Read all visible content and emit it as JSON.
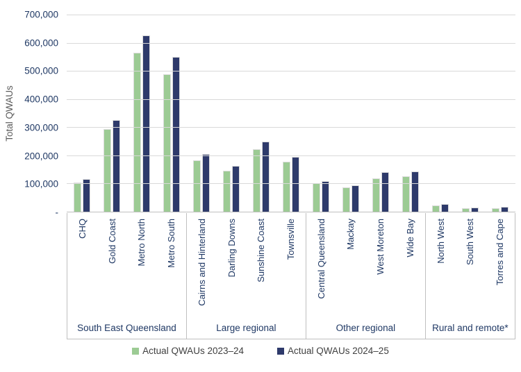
{
  "chart_data": {
    "type": "bar",
    "title": "",
    "xlabel": "",
    "ylabel": "Total QWAUs",
    "ylim": [
      0,
      700000
    ],
    "ytick_step": 100000,
    "ytick_labels": [
      "700,000",
      "600,000",
      "500,000",
      "400,000",
      "300,000",
      "200,000",
      "100,000",
      "-"
    ],
    "grid": true,
    "legend_position": "bottom",
    "groups": [
      {
        "label": "South East Queensland",
        "categories": [
          "CHQ",
          "Gold Coast",
          "Metro North",
          "Metro South"
        ]
      },
      {
        "label": "Large regional",
        "categories": [
          "Cairns and Hinterland",
          "Darling Downs",
          "Sunshine Coast",
          "Townsville"
        ]
      },
      {
        "label": "Other regional",
        "categories": [
          "Central Queensland",
          "Mackay",
          "West Moreton",
          "Wide Bay"
        ]
      },
      {
        "label": "Rural and remote*",
        "categories": [
          "North West",
          "South West",
          "Torres and Cape"
        ]
      }
    ],
    "series": [
      {
        "name": "Actual QWAUs 2023–24",
        "color": "#9CCB94",
        "values": [
          102000,
          293000,
          563000,
          487000,
          181000,
          146000,
          220000,
          178000,
          100000,
          86000,
          118000,
          125000,
          22000,
          13000,
          12000
        ]
      },
      {
        "name": "Actual QWAUs 2024–25",
        "color": "#2E3A6B",
        "values": [
          115000,
          325000,
          625000,
          547000,
          203000,
          163000,
          247000,
          193000,
          109000,
          94000,
          140000,
          142000,
          28000,
          15000,
          17000
        ]
      }
    ],
    "colors": {
      "axis_text": "#1F3864",
      "axis_title": "#595959",
      "gridline": "#D9D9D9",
      "axis_line": "#BFBFBF",
      "legend_text": "#404040"
    }
  }
}
